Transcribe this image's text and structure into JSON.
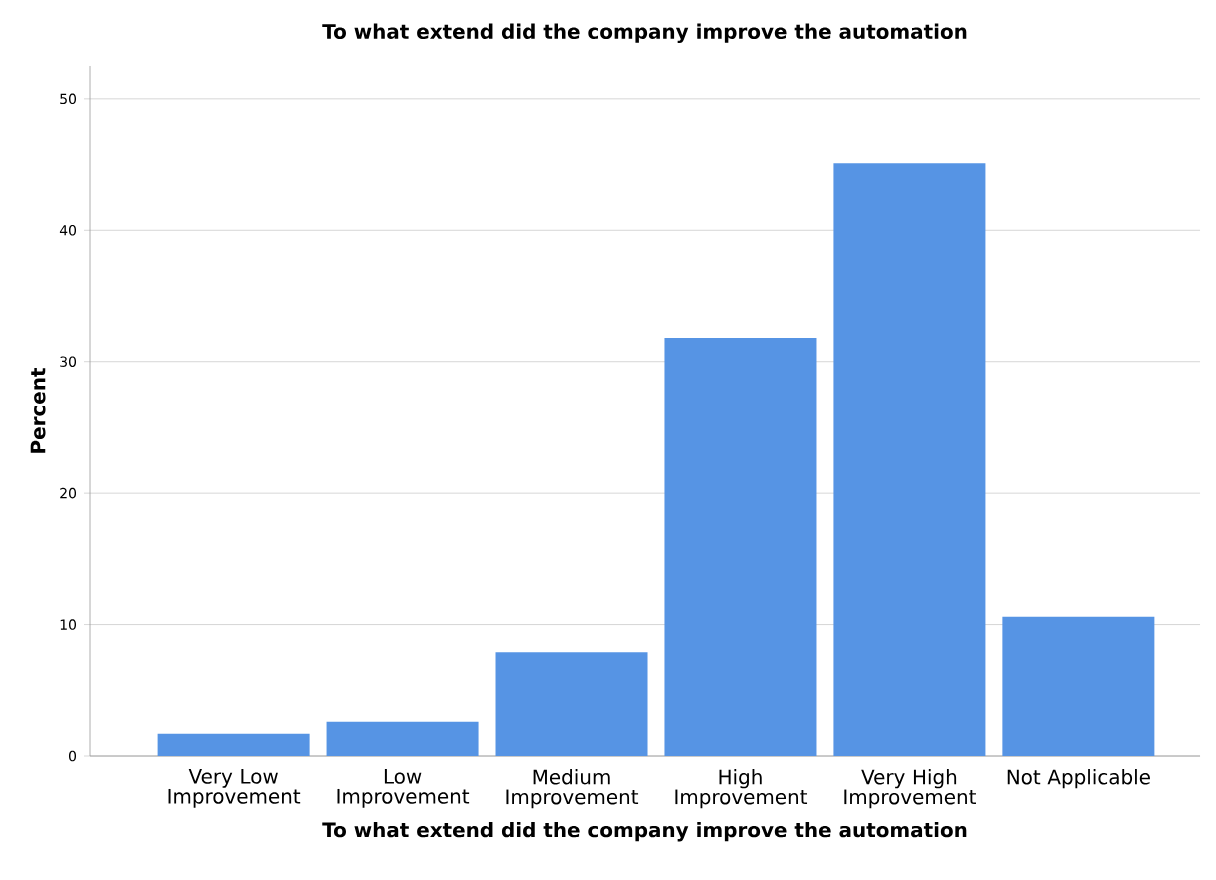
{
  "chart_data": {
    "type": "bar",
    "title": "To what extend did the company improve the automation",
    "xlabel": "To what extend did the company improve the automation",
    "ylabel": "Percent",
    "categories": [
      "Very Low Improvement",
      "Low Improvement",
      "Medium Improvement",
      "High Improvement",
      "Very High Improvement",
      "Not Applicable"
    ],
    "values": [
      1.7,
      2.6,
      7.9,
      31.8,
      45.1,
      10.6
    ],
    "color": "#5694e4",
    "ylim": [
      0,
      52.5
    ],
    "yticks": [
      0,
      10,
      20,
      30,
      40,
      50
    ],
    "grid": "y"
  }
}
